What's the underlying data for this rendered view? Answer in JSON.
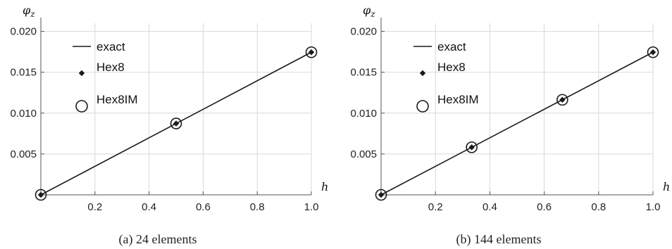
{
  "chart_data": [
    {
      "type": "line",
      "caption": "(a) 24 elements",
      "xlabel": "h",
      "ylabel": "φz",
      "xlim": [
        0,
        1.0
      ],
      "ylim": [
        0,
        0.021
      ],
      "xticks": [
        0.2,
        0.4,
        0.6,
        0.8,
        1.0
      ],
      "xtick_labels": [
        "0.2",
        "0.4",
        "0.6",
        "0.8",
        "1.0"
      ],
      "yticks": [
        0.005,
        0.01,
        0.015,
        0.02
      ],
      "ytick_labels": [
        "0.005",
        "0.010",
        "0.015",
        "0.020"
      ],
      "grid": true,
      "legend": [
        "exact",
        "Hex8",
        "Hex8IM"
      ],
      "legend_position": "top-left",
      "series": [
        {
          "name": "exact",
          "kind": "line",
          "x": [
            0,
            1.0
          ],
          "y": [
            0,
            0.01745
          ]
        },
        {
          "name": "Hex8",
          "kind": "diamond",
          "x": [
            0,
            0.5,
            1.0
          ],
          "y": [
            0,
            0.00873,
            0.01745
          ]
        },
        {
          "name": "Hex8IM",
          "kind": "circle",
          "x": [
            0,
            0.5,
            1.0
          ],
          "y": [
            0,
            0.00873,
            0.01745
          ]
        }
      ]
    },
    {
      "type": "line",
      "caption": "(b) 144 elements",
      "xlabel": "h",
      "ylabel": "φz",
      "xlim": [
        0,
        1.0
      ],
      "ylim": [
        0,
        0.021
      ],
      "xticks": [
        0.2,
        0.4,
        0.6,
        0.8,
        1.0
      ],
      "xtick_labels": [
        "0.2",
        "0.4",
        "0.6",
        "0.8",
        "1.0"
      ],
      "yticks": [
        0.005,
        0.01,
        0.015,
        0.02
      ],
      "ytick_labels": [
        "0.005",
        "0.010",
        "0.015",
        "0.020"
      ],
      "grid": true,
      "legend": [
        "exact",
        "Hex8",
        "Hex8IM"
      ],
      "legend_position": "top-left",
      "series": [
        {
          "name": "exact",
          "kind": "line",
          "x": [
            0,
            1.0
          ],
          "y": [
            0,
            0.01745
          ]
        },
        {
          "name": "Hex8",
          "kind": "diamond",
          "x": [
            0,
            0.3333,
            0.6667,
            1.0
          ],
          "y": [
            0,
            0.00582,
            0.01163,
            0.01745
          ]
        },
        {
          "name": "Hex8IM",
          "kind": "circle",
          "x": [
            0,
            0.3333,
            0.6667,
            1.0
          ],
          "y": [
            0,
            0.00582,
            0.01163,
            0.01745
          ]
        }
      ]
    }
  ]
}
